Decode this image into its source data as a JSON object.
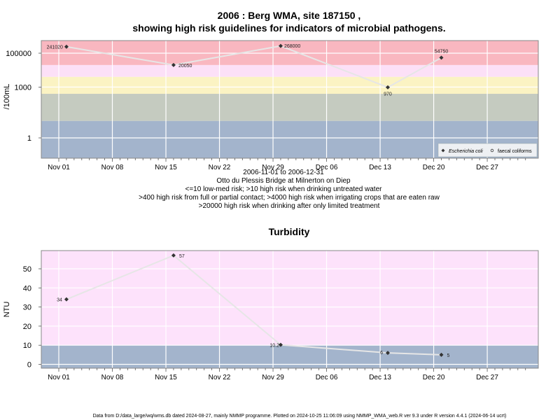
{
  "colors": {
    "very_high": "#f9b7c0",
    "band2": "#fce0f7",
    "band3": "#fbf3c3",
    "band4": "#c5cbc0",
    "low": "#a3b4cc",
    "turb_high": "#fde2fb",
    "turb_low": "#a3b4cc",
    "point": "#333333",
    "line": "#e6e6e6"
  },
  "header": {
    "title_line1": "2006 : Berg WMA, site 187150 ,",
    "title_line2": "showing high risk guidelines for indicators of microbial pathogens."
  },
  "caption": {
    "line1": "2006-11-01 to 2006-12-31",
    "line2": "Otto du Plessis Bridge at Milnerton on Diep",
    "line3": "<=10 low-med risk; >10 high risk when drinking untreated water",
    "line4": ">400 high risk from full or partial contact; >4000 high risk when irrigating crops that are eaten raw",
    "line5": ">20000 high risk when drinking after only limited treatment"
  },
  "footer": "Data from D:/data_large/wq/wms.db dated 2024-08-27, mainly NMMP programme. Plotted on 2024-10-25 11:06:09 using NMMP_WMA_web.R ver 9.3 under R version 4.4.1 (2024-06-14 ucrt)",
  "x_ticks": [
    "Nov 01",
    "Nov 08",
    "Nov 15",
    "Nov 22",
    "Nov 29",
    "Dec 06",
    "Dec 13",
    "Dec 20",
    "Dec 27"
  ],
  "chart_data": [
    {
      "type": "scatter",
      "title": "",
      "xlabel": "",
      "ylabel": "/100mL",
      "y_scale": "log10",
      "y_ticks": [
        "1",
        "1000",
        "100000"
      ],
      "grid": true,
      "legend_position": "bottom-right",
      "legend": [
        "Escherichia coli",
        "faecal coliforms"
      ],
      "risk_bands": [
        10,
        400,
        4000,
        20000
      ],
      "series": [
        {
          "name": "Escherichia coli",
          "x": [
            "2006-11-02",
            "2006-11-16",
            "2006-11-30",
            "2006-12-14",
            "2006-12-21"
          ],
          "values": [
            241020,
            20050,
            268000,
            970,
            54750
          ],
          "labels": [
            "241020",
            "20050",
            "268000",
            "970",
            "54750"
          ]
        }
      ]
    },
    {
      "type": "scatter",
      "title": "Turbidity",
      "xlabel": "",
      "ylabel": "NTU",
      "y_ticks": [
        "0",
        "10",
        "20",
        "30",
        "40",
        "50"
      ],
      "ylim": [
        -2,
        60
      ],
      "grid": true,
      "risk_bands": [
        10
      ],
      "series": [
        {
          "name": "",
          "x": [
            "2006-11-02",
            "2006-11-16",
            "2006-11-30",
            "2006-12-14",
            "2006-12-21"
          ],
          "values": [
            34,
            57,
            10.2,
            6,
            5
          ],
          "labels": [
            "34",
            "57",
            "10.2",
            "6",
            "5"
          ]
        }
      ]
    }
  ]
}
